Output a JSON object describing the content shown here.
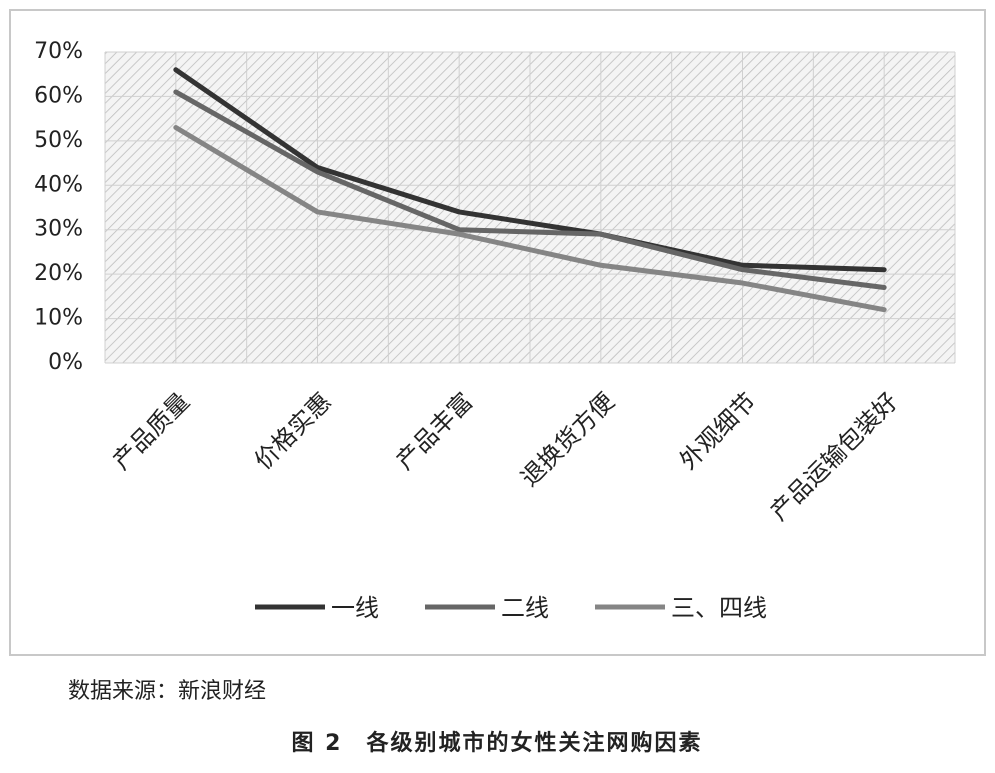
{
  "chart_data": {
    "type": "line",
    "categories": [
      "产品质量",
      "价格实惠",
      "产品丰富",
      "退换货方便",
      "外观细节",
      "产品运输包装好"
    ],
    "series": [
      {
        "name": "一线",
        "color": "#333333",
        "values": [
          66,
          44,
          34,
          29,
          22,
          21
        ]
      },
      {
        "name": "二线",
        "color": "#666666",
        "values": [
          61,
          43,
          30,
          29,
          21,
          17
        ]
      },
      {
        "name": "三、四线",
        "color": "#858585",
        "values": [
          53,
          34,
          29,
          22,
          18,
          12
        ]
      }
    ],
    "ylim": [
      0,
      70
    ],
    "yticks": [
      {
        "value": 0,
        "label": "0%"
      },
      {
        "value": 10,
        "label": "10%"
      },
      {
        "value": 20,
        "label": "20%"
      },
      {
        "value": 30,
        "label": "30%"
      },
      {
        "value": 40,
        "label": "40%"
      },
      {
        "value": 50,
        "label": "50%"
      },
      {
        "value": 60,
        "label": "60%"
      },
      {
        "value": 70,
        "label": "70%"
      }
    ],
    "grid": true,
    "legend": "bottom"
  },
  "source": "数据来源：新浪财经",
  "caption": "图 2　各级别城市的女性关注网购因素"
}
